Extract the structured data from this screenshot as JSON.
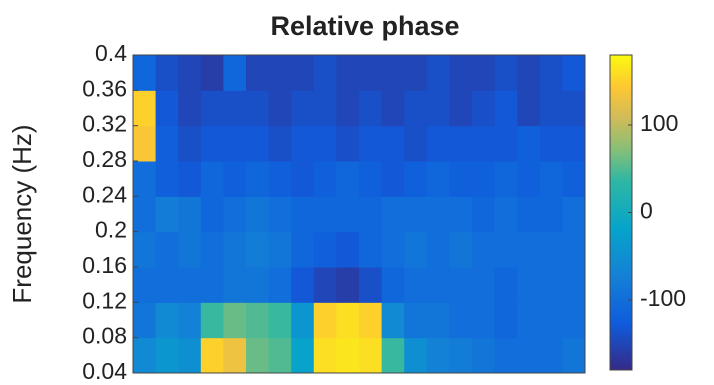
{
  "chart_data": {
    "type": "heatmap",
    "title": "Relative phase",
    "ylabel": "Frequency (Hz)",
    "ylim": [
      0.04,
      0.4
    ],
    "yticks": [
      0.4,
      0.36,
      0.32,
      0.28,
      0.24,
      0.2,
      0.16,
      0.12,
      0.08,
      0.04
    ],
    "y": [
      0.06,
      0.1,
      0.14,
      0.18,
      0.22,
      0.26,
      0.3,
      0.34,
      0.38
    ],
    "z": [
      [
        -60,
        -40,
        -50,
        150,
        130,
        60,
        50,
        -20,
        160,
        165,
        160,
        40,
        -50,
        -70,
        -80,
        -90,
        -100,
        -100,
        -100,
        -90
      ],
      [
        -90,
        -60,
        -70,
        40,
        60,
        50,
        40,
        -40,
        150,
        160,
        150,
        -60,
        -90,
        -90,
        -100,
        -100,
        -110,
        -100,
        -100,
        -100
      ],
      [
        -100,
        -100,
        -100,
        -100,
        -90,
        -90,
        -100,
        -130,
        -150,
        -160,
        -140,
        -110,
        -100,
        -100,
        -100,
        -100,
        -110,
        -100,
        -100,
        -100
      ],
      [
        -90,
        -100,
        -90,
        -100,
        -90,
        -80,
        -90,
        -110,
        -120,
        -130,
        -110,
        -100,
        -90,
        -100,
        -90,
        -100,
        -100,
        -100,
        -100,
        -100
      ],
      [
        -100,
        -80,
        -90,
        -110,
        -100,
        -90,
        -100,
        -110,
        -110,
        -110,
        -110,
        -100,
        -100,
        -100,
        -100,
        -110,
        -100,
        -110,
        -110,
        -100
      ],
      [
        -100,
        -120,
        -130,
        -110,
        -120,
        -110,
        -120,
        -130,
        -120,
        -110,
        -120,
        -130,
        -120,
        -110,
        -120,
        -120,
        -110,
        -120,
        -110,
        -120
      ],
      [
        140,
        -120,
        -140,
        -130,
        -130,
        -130,
        -140,
        -130,
        -130,
        -140,
        -130,
        -130,
        -140,
        -130,
        -130,
        -130,
        -130,
        -120,
        -130,
        -130
      ],
      [
        150,
        -130,
        -150,
        -140,
        -140,
        -140,
        -150,
        -140,
        -140,
        -150,
        -140,
        -150,
        -140,
        -140,
        -150,
        -140,
        -130,
        -150,
        -140,
        -140
      ],
      [
        -110,
        -140,
        -150,
        -160,
        -110,
        -150,
        -150,
        -150,
        -140,
        -150,
        -150,
        -150,
        -150,
        -140,
        -150,
        -150,
        -140,
        -150,
        -140,
        -130
      ]
    ],
    "colormap": "parula",
    "clim": [
      -180,
      180
    ],
    "cticks": [
      -100,
      0,
      100
    ]
  }
}
